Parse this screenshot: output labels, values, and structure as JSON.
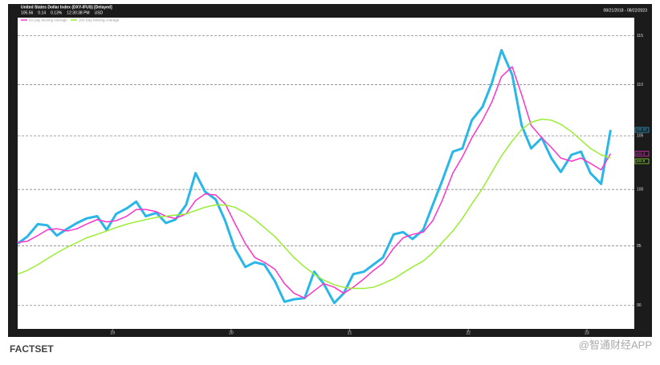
{
  "chart_data": {
    "type": "line",
    "title": "United States Dollar Index (DXY-IFUS) [Delayed]",
    "quote": [
      "105.56",
      "0.14",
      "0.13%",
      "12:30:38 PM",
      "USD"
    ],
    "date_range": "08/21/2018 - 08/22/2023",
    "x": [
      2018.7,
      2018.78,
      2018.87,
      2018.95,
      2019.03,
      2019.12,
      2019.2,
      2019.28,
      2019.37,
      2019.45,
      2019.53,
      2019.62,
      2019.7,
      2019.78,
      2019.87,
      2019.95,
      2020.03,
      2020.12,
      2020.2,
      2020.28,
      2020.37,
      2020.45,
      2020.53,
      2020.62,
      2020.7,
      2020.78,
      2020.87,
      2020.95,
      2021.03,
      2021.12,
      2021.2,
      2021.28,
      2021.37,
      2021.45,
      2021.53,
      2021.62,
      2021.7,
      2021.78,
      2021.87,
      2021.95,
      2022.03,
      2022.12,
      2022.2,
      2022.28,
      2022.37,
      2022.45,
      2022.53,
      2022.62,
      2022.7,
      2022.78,
      2022.87,
      2022.95,
      2023.03,
      2023.12,
      2023.2,
      2023.28,
      2023.37,
      2023.45,
      2023.53,
      2023.62,
      2023.7
    ],
    "series": [
      {
        "name": "United States Dollar Index",
        "color": "#29b6e8",
        "values": [
          95.2,
          95.8,
          96.9,
          96.8,
          95.9,
          96.5,
          97.0,
          97.4,
          97.6,
          96.4,
          97.8,
          98.3,
          98.9,
          97.6,
          97.9,
          97.0,
          97.3,
          98.6,
          101.5,
          99.8,
          99.1,
          97.2,
          94.8,
          93.2,
          93.6,
          93.4,
          92.0,
          90.3,
          90.5,
          90.6,
          92.8,
          91.8,
          90.2,
          91.0,
          92.6,
          92.8,
          93.4,
          94.0,
          96.0,
          96.2,
          95.6,
          96.4,
          98.6,
          100.8,
          103.5,
          103.8,
          106.5,
          107.8,
          110.2,
          113.5,
          111.0,
          106.0,
          103.8,
          104.8,
          102.9,
          101.6,
          103.2,
          103.5,
          101.5,
          100.5,
          105.56
        ]
      },
      {
        "name": "50 Day Moving Average",
        "color": "#ff33cc",
        "values": [
          95.3,
          95.4,
          95.9,
          96.4,
          96.5,
          96.3,
          96.5,
          96.9,
          97.3,
          97.1,
          97.2,
          97.6,
          98.2,
          98.2,
          98.0,
          97.6,
          97.4,
          97.8,
          99.0,
          99.6,
          99.5,
          98.7,
          97.0,
          95.2,
          94.0,
          93.6,
          93.0,
          91.8,
          91.0,
          90.6,
          91.2,
          91.8,
          91.5,
          91.0,
          91.5,
          92.2,
          92.9,
          93.5,
          94.8,
          95.7,
          96.0,
          96.2,
          97.2,
          99.0,
          101.5,
          103.0,
          104.8,
          106.5,
          108.3,
          110.8,
          111.8,
          109.0,
          106.0,
          104.8,
          103.9,
          102.9,
          102.6,
          102.9,
          102.4,
          101.8,
          103.3
        ]
      },
      {
        "name": "200 Day Moving Average",
        "color": "#99ee33",
        "values": [
          92.6,
          92.9,
          93.4,
          93.9,
          94.4,
          94.9,
          95.3,
          95.7,
          96.0,
          96.3,
          96.6,
          96.9,
          97.1,
          97.3,
          97.5,
          97.6,
          97.7,
          97.8,
          98.1,
          98.4,
          98.6,
          98.6,
          98.4,
          97.9,
          97.3,
          96.6,
          95.8,
          94.9,
          94.0,
          93.2,
          92.6,
          92.1,
          91.7,
          91.5,
          91.4,
          91.4,
          91.5,
          91.8,
          92.2,
          92.7,
          93.2,
          93.7,
          94.4,
          95.3,
          96.3,
          97.4,
          98.7,
          100.1,
          101.6,
          103.1,
          104.5,
          105.6,
          106.3,
          106.6,
          106.5,
          106.1,
          105.4,
          104.6,
          103.8,
          103.2,
          102.9
        ]
      }
    ],
    "xlim": [
      2018.7,
      2023.9
    ],
    "xticks": [
      {
        "value": 2019.5,
        "label": "19"
      },
      {
        "value": 2020.5,
        "label": "20"
      },
      {
        "value": 2021.5,
        "label": "21"
      },
      {
        "value": 2022.5,
        "label": "22"
      },
      {
        "value": 2023.5,
        "label": "23"
      }
    ],
    "ylim": [
      88.1,
      116.9
    ],
    "yticks": [
      90,
      95,
      100,
      105,
      110,
      115
    ],
    "log_scale": true,
    "grid": true,
    "legend_series": [
      1,
      2
    ],
    "source": "FACTSET",
    "watermark": "@智通财经APP"
  }
}
